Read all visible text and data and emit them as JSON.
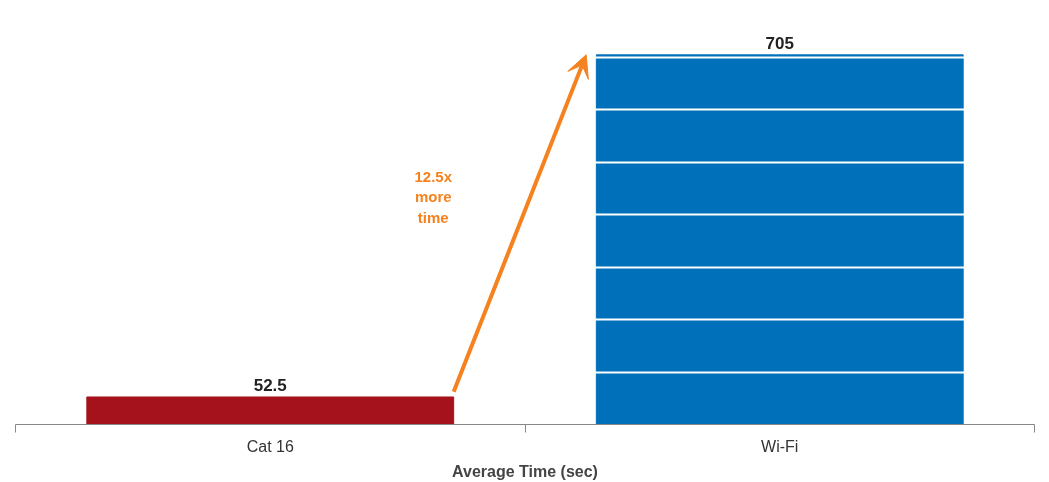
{
  "chart_data": {
    "type": "bar",
    "xlabel": "Average Time (sec)",
    "categories": [
      "Cat 16",
      "Wi-Fi"
    ],
    "values": [
      52.5,
      705
    ],
    "colors": [
      "#a6121c",
      "#0070bb"
    ],
    "data_labels": true,
    "yticks": [
      {
        "value": 0,
        "label": null
      },
      {
        "value": 100,
        "label": null
      },
      {
        "value": 200,
        "label": null
      },
      {
        "value": 300,
        "label": null
      },
      {
        "value": 400,
        "label": null
      },
      {
        "value": 500,
        "label": null
      },
      {
        "value": 600,
        "label": null
      },
      {
        "value": 700,
        "label": null
      }
    ],
    "grid": "y",
    "tick_labels": "x",
    "annotations": [
      "12.5x\nmore\ntime"
    ]
  }
}
